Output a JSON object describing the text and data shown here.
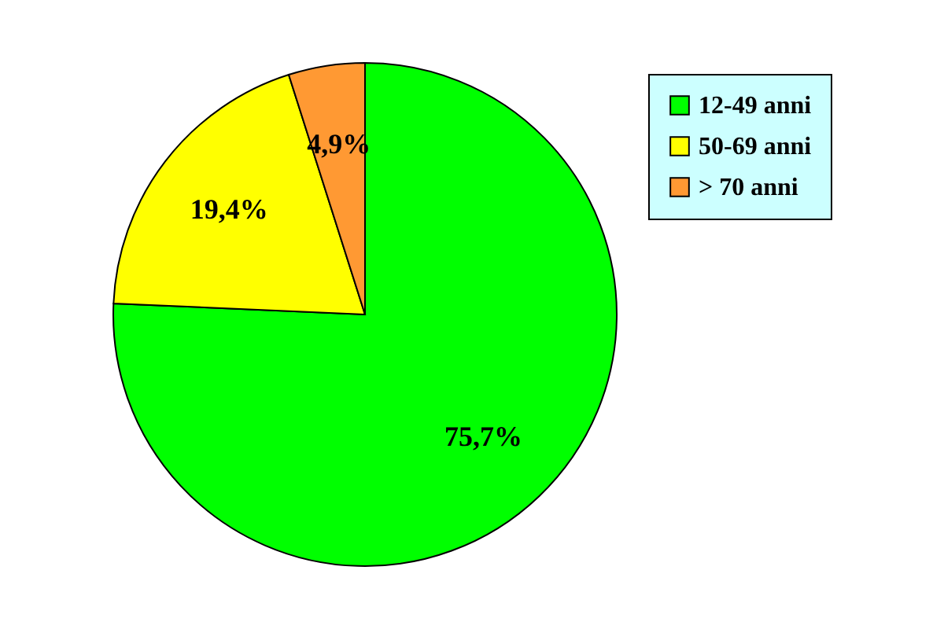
{
  "chart_data": {
    "type": "pie",
    "categories": [
      "12-49 anni",
      "50-69 anni",
      "> 70 anni"
    ],
    "values": [
      75.7,
      19.4,
      4.9
    ],
    "colors": [
      "#00ff00",
      "#ffff00",
      "#ff9933"
    ],
    "value_labels": [
      "75,7%",
      "19,4%",
      "4,9%"
    ],
    "legend": "top right"
  }
}
